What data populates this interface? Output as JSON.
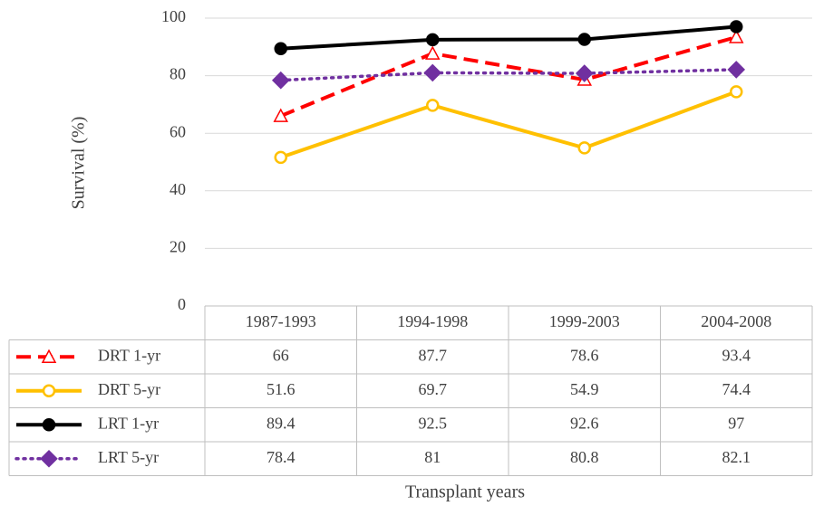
{
  "chart_data": {
    "type": "line",
    "y_label": "Survival (%)",
    "x_label": "Transplant years",
    "categories": [
      "1987-1993",
      "1994-1998",
      "1999-2003",
      "2004-2008"
    ],
    "series": [
      {
        "name": "DRT 1-yr",
        "color": "#ff0000",
        "dash": "dashed",
        "marker": "triangle",
        "marker_fill": "open",
        "values": [
          66,
          87.7,
          78.6,
          93.4
        ]
      },
      {
        "name": "DRT 5-yr",
        "color": "#ffc000",
        "dash": "solid",
        "marker": "circle",
        "marker_fill": "open",
        "values": [
          51.6,
          69.7,
          54.9,
          74.4
        ]
      },
      {
        "name": "LRT 1-yr",
        "color": "#000000",
        "dash": "solid",
        "marker": "circle",
        "marker_fill": "filled",
        "values": [
          89.4,
          92.5,
          92.6,
          97
        ]
      },
      {
        "name": "LRT 5-yr",
        "color": "#7030a0",
        "dash": "dotted",
        "marker": "diamond",
        "marker_fill": "filled",
        "values": [
          78.4,
          81,
          80.8,
          82.1
        ]
      }
    ],
    "ylim": [
      0,
      100
    ],
    "yticks": [
      0,
      20,
      40,
      60,
      80,
      100
    ],
    "grid": true,
    "legend": "table"
  }
}
